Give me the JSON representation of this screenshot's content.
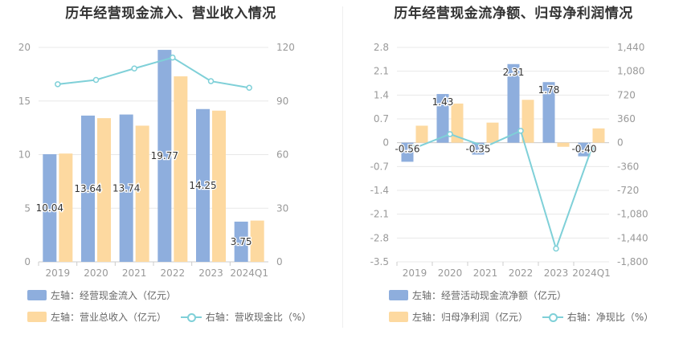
{
  "colors": {
    "blue_bar": "#8eaedd",
    "yellow_bar": "#fdd9a0",
    "cyan_line": "#7fd0d8",
    "axis_text": "#999999",
    "grid": "#e8e8e8"
  },
  "chart_data": [
    {
      "type": "bar",
      "title": "历年经营现金流入、营业收入情况",
      "categories": [
        "2019",
        "2020",
        "2021",
        "2022",
        "2023",
        "2024Q1"
      ],
      "left_axis": {
        "ylim": [
          0,
          20
        ],
        "ticks": [
          "0",
          "5",
          "10",
          "15",
          "20"
        ]
      },
      "right_axis": {
        "ylim": [
          0,
          120
        ],
        "ticks": [
          "0",
          "30",
          "60",
          "90",
          "120"
        ]
      },
      "grid": true,
      "series": [
        {
          "name": "左轴：经营现金流入（亿元）",
          "axis": "left",
          "kind": "bar",
          "values": [
            10.04,
            13.64,
            13.74,
            19.77,
            14.25,
            3.75
          ],
          "labels": [
            "10.04",
            "13.64",
            "13.74",
            "19.77",
            "14.25",
            "3.75"
          ]
        },
        {
          "name": "左轴：营业总收入（亿元）",
          "axis": "left",
          "kind": "bar",
          "values": [
            10.1,
            13.4,
            12.7,
            17.3,
            14.1,
            3.85
          ]
        },
        {
          "name": "右轴：营收现金比（%）",
          "axis": "right",
          "kind": "line",
          "values": [
            99.4,
            101.8,
            108.2,
            114.3,
            101.1,
            97.4
          ]
        }
      ],
      "legend": [
        {
          "label": "左轴：经营现金流入（亿元）",
          "kind": "bar",
          "color": "#8eaedd"
        },
        {
          "label": "左轴：营业总收入（亿元）",
          "kind": "bar",
          "color": "#fdd9a0"
        },
        {
          "label": "右轴：营收现金比（%）",
          "kind": "line",
          "color": "#7fd0d8"
        }
      ],
      "legend_placement": "bottom"
    },
    {
      "type": "bar",
      "title": "历年经营现金流净额、归母净利润情况",
      "categories": [
        "2019",
        "2020",
        "2021",
        "2022",
        "2023",
        "2024Q1"
      ],
      "left_axis": {
        "ylim": [
          -3.5,
          2.8
        ],
        "ticks": [
          "-3.5",
          "-2.8",
          "-2.1",
          "-1.4",
          "-0.7",
          "0",
          "0.7",
          "1.4",
          "2.1",
          "2.8"
        ]
      },
      "right_axis": {
        "ylim": [
          -1800,
          1440
        ],
        "ticks": [
          "-1,800",
          "-1,440",
          "-1,080",
          "-720",
          "-360",
          "0",
          "360",
          "720",
          "1,080",
          "1,440"
        ]
      },
      "grid": true,
      "series": [
        {
          "name": "左轴：经营活动现金流净额（亿元）",
          "axis": "left",
          "kind": "bar",
          "values": [
            -0.56,
            1.43,
            -0.35,
            2.31,
            1.78,
            -0.4
          ],
          "labels": [
            "-0.56",
            "1.43",
            "-0.35",
            "2.31",
            "1.78",
            "-0.40"
          ]
        },
        {
          "name": "左轴：归母净利润（亿元）",
          "axis": "left",
          "kind": "bar",
          "values": [
            0.5,
            1.15,
            0.59,
            1.26,
            -0.12,
            0.42
          ]
        },
        {
          "name": "右轴：净现比（%）",
          "axis": "right",
          "kind": "line",
          "values": [
            -80,
            130,
            -60,
            180,
            -1600,
            -95
          ]
        }
      ],
      "legend": [
        {
          "label": "左轴：经营活动现金流净额（亿元）",
          "kind": "bar",
          "color": "#8eaedd"
        },
        {
          "label": "左轴：归母净利润（亿元）",
          "kind": "bar",
          "color": "#fdd9a0"
        },
        {
          "label": "右轴：净现比（%）",
          "kind": "line",
          "color": "#7fd0d8"
        }
      ],
      "legend_placement": "bottom"
    }
  ]
}
